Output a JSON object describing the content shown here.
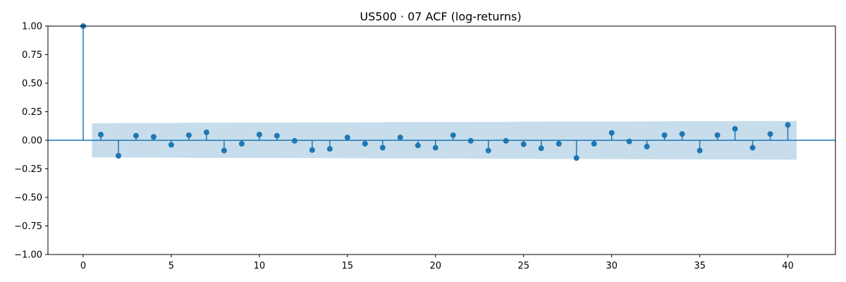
{
  "chart_data": {
    "type": "stem",
    "title": "US500 · 07 ACF (log-returns)",
    "xlabel": "",
    "ylabel": "",
    "xlim": [
      -2,
      42.7
    ],
    "ylim": [
      -1.0,
      1.0
    ],
    "xticks": [
      0,
      5,
      10,
      15,
      20,
      25,
      30,
      35,
      40
    ],
    "yticks": [
      -1.0,
      -0.75,
      -0.5,
      -0.25,
      0.0,
      0.25,
      0.5,
      0.75,
      1.0
    ],
    "ytick_labels": [
      "−1.00",
      "−0.75",
      "−0.50",
      "−0.25",
      "0.00",
      "0.25",
      "0.50",
      "0.75",
      "1.00"
    ],
    "grid": false,
    "lags": [
      0,
      1,
      2,
      3,
      4,
      5,
      6,
      7,
      8,
      9,
      10,
      11,
      12,
      13,
      14,
      15,
      16,
      17,
      18,
      19,
      20,
      21,
      22,
      23,
      24,
      25,
      26,
      27,
      28,
      29,
      30,
      31,
      32,
      33,
      34,
      35,
      36,
      37,
      38,
      39,
      40
    ],
    "acf": [
      1.0,
      0.05,
      -0.135,
      0.04,
      0.03,
      -0.04,
      0.045,
      0.07,
      -0.09,
      -0.03,
      0.05,
      0.04,
      -0.005,
      -0.085,
      -0.075,
      0.025,
      -0.03,
      -0.065,
      0.025,
      -0.045,
      -0.065,
      0.045,
      -0.005,
      -0.09,
      -0.005,
      -0.035,
      -0.07,
      -0.03,
      -0.155,
      -0.03,
      0.065,
      -0.01,
      -0.055,
      0.045,
      0.055,
      -0.09,
      0.045,
      0.1,
      -0.065,
      0.055,
      0.135
    ],
    "confidence_band": {
      "x_start": 0.5,
      "x_end": 40.5,
      "half_width_start": 0.15,
      "half_width_end": 0.17
    },
    "colors": {
      "stem": "#1f77b4",
      "marker": "#1f77b4",
      "zero_line": "#1f77b4",
      "band": "#1f77b4",
      "axes": "#000000"
    }
  }
}
